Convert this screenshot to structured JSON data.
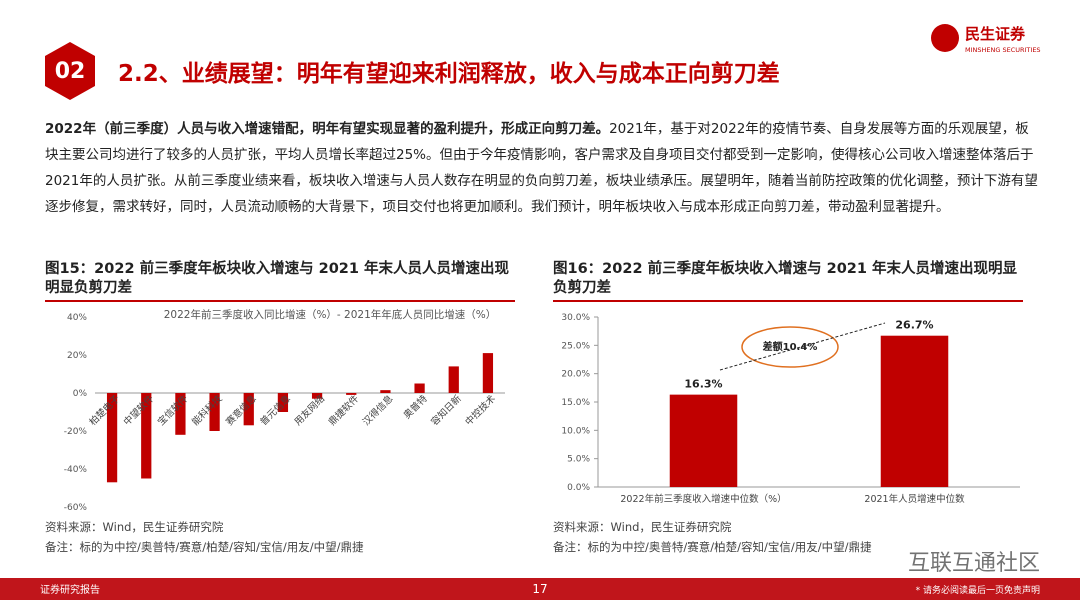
{
  "header": {
    "badge": "02",
    "title": "2.2、业绩展望：明年有望迎来利润释放，收入与成本正向剪刀差",
    "logo_cn": "民生证券",
    "logo_en": "MINSHENG SECURITIES"
  },
  "body": {
    "bold": "2022年（前三季度）人员与收入增速错配，明年有望实现显著的盈利提升，形成正向剪刀差。",
    "text": "2021年，基于对2022年的疫情节奏、自身发展等方面的乐观展望，板块主要公司均进行了较多的人员扩张，平均人员增长率超过25%。但由于今年疫情影响，客户需求及自身项目交付都受到一定影响，使得核心公司收入增速整体落后于2021年的人员扩张。从前三季度业绩来看，板块收入增速与人员人数存在明显的负向剪刀差，板块业绩承压。展望明年，随着当前防控政策的优化调整，预计下游有望逐步修复，需求转好，同时，人员流动顺畅的大背景下，项目交付也将更加顺利。我们预计，明年板块收入与成本形成正向剪刀差，带动盈利显著提升。"
  },
  "chart_data": [
    {
      "type": "bar",
      "caption": "图15：2022 前三季度年板块收入增速与 2021 年末人员人员增速出现明显负剪刀差",
      "title": "2022年前三季度收入同比增速（%）- 2021年年底人员同比增速（%）",
      "color": "#c00000",
      "categories": [
        "柏楚电子",
        "中望软件",
        "宝信软件",
        "能科科技",
        "赛意信息",
        "普元信息",
        "用友网络",
        "鼎捷软件",
        "汉得信息",
        "奥普特",
        "容知日新",
        "中控技术"
      ],
      "values": [
        -47,
        -45,
        -22,
        -20,
        -17,
        -10,
        -3,
        -1,
        1.5,
        5,
        14,
        21
      ],
      "ylim": [
        -60,
        40
      ],
      "yticks": [
        {
          "value": -60,
          "label": "-60%"
        },
        {
          "value": -40,
          "label": "-40%"
        },
        {
          "value": -20,
          "label": "-20%"
        },
        {
          "value": 0,
          "label": "0%"
        },
        {
          "value": 20,
          "label": "20%"
        },
        {
          "value": 40,
          "label": "40%"
        }
      ],
      "source": "资料来源：Wind，民生证券研究院",
      "note": "备注：标的为中控/奥普特/赛意/柏楚/容知/宝信/用友/中望/鼎捷"
    },
    {
      "type": "bar",
      "caption": "图16：2022 前三季度年板块收入增速与 2021 年末人员增速出现明显负剪刀差",
      "color": "#c00000",
      "categories": [
        "2022年前三季度收入增速中位数（%）",
        "2021年人员增速中位数"
      ],
      "values": [
        16.3,
        26.7
      ],
      "value_labels": [
        "16.3%",
        "26.7%"
      ],
      "ylim": [
        0,
        30
      ],
      "yticks": [
        {
          "value": 0,
          "label": "0.0%"
        },
        {
          "value": 5,
          "label": "5.0%"
        },
        {
          "value": 10,
          "label": "10.0%"
        },
        {
          "value": 15,
          "label": "15.0%"
        },
        {
          "value": 20,
          "label": "20.0%"
        },
        {
          "value": 25,
          "label": "25.0%"
        },
        {
          "value": 30,
          "label": "30.0%"
        }
      ],
      "annotation": "差额10.4%",
      "source": "资料来源：Wind，民生证券研究院",
      "note": "备注：标的为中控/奥普特/赛意/柏楚/容知/宝信/用友/中望/鼎捷"
    }
  ],
  "footer": {
    "left": "证券研究报告",
    "page": "17",
    "right": "* 请务必阅读最后一页免责声明"
  },
  "watermark": "互联互通社区"
}
